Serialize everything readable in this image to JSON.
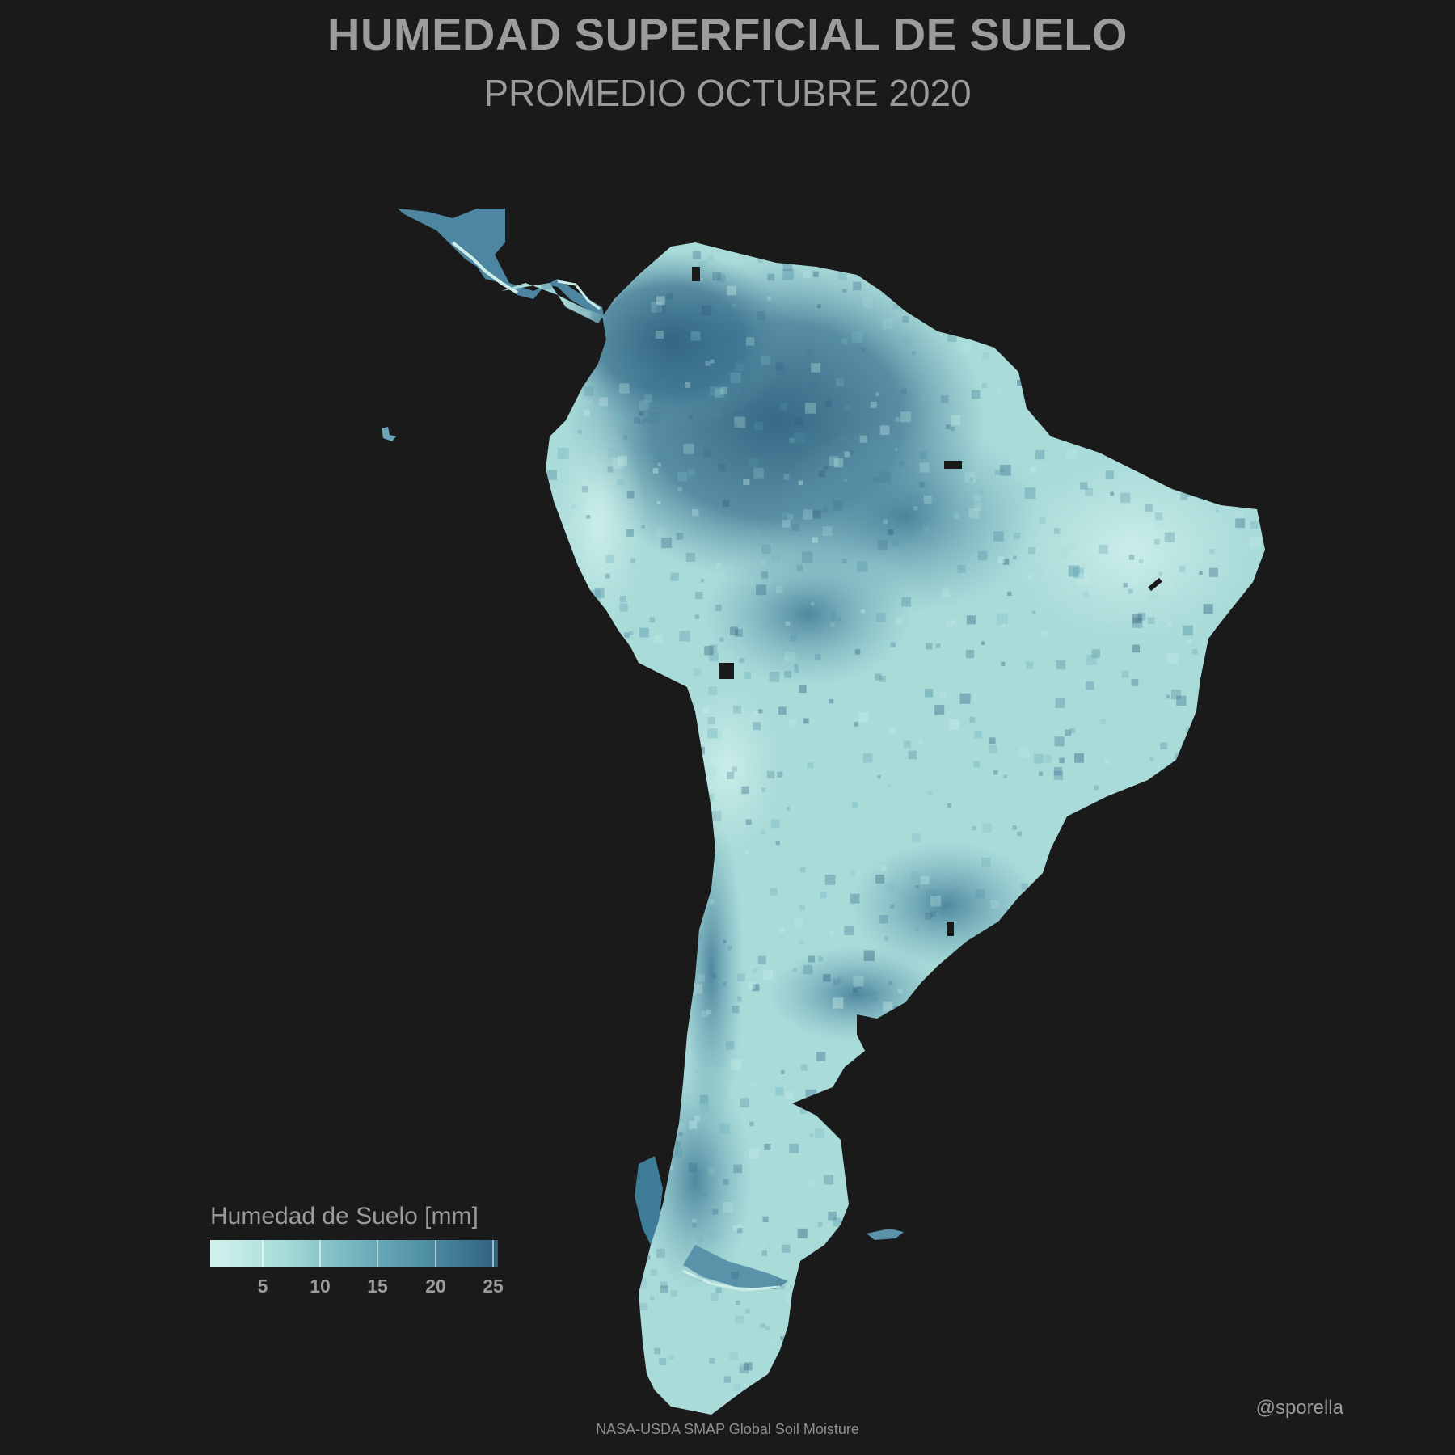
{
  "title": "HUMEDAD SUPERFICIAL DE SUELO",
  "subtitle": "PROMEDIO OCTUBRE 2020",
  "legend": {
    "title": "Humedad de Suelo [mm]",
    "ticks": [
      "5",
      "10",
      "15",
      "20",
      "25"
    ],
    "range": [
      0.5,
      25.5
    ],
    "colors": [
      "#d3f2ee",
      "#a8dcd8",
      "#74b5bf",
      "#4f8fa4",
      "#2f5f7e"
    ]
  },
  "credit": "@sporella",
  "source": "NASA-USDA SMAP Global Soil Moisture",
  "map": {
    "region": "South America",
    "background_color": "#1a1a1b",
    "wet_color": "#3a6a88",
    "dry_color": "#c6ebe8"
  }
}
